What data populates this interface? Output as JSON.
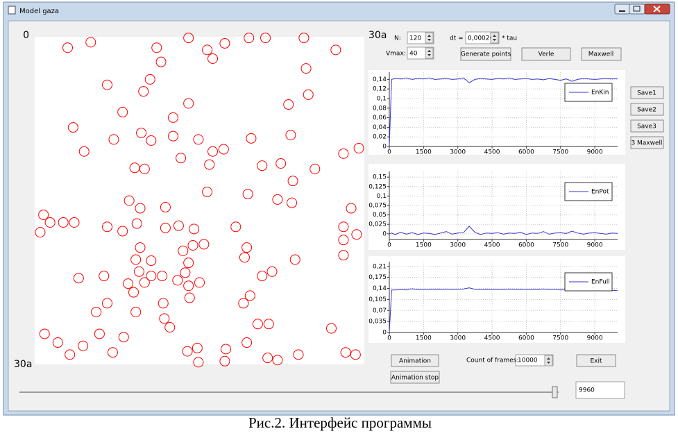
{
  "window": {
    "title": "Model gaza"
  },
  "field": {
    "xlim": [
      0,
      30
    ],
    "ylim": [
      0,
      30
    ],
    "xticks": [
      0,
      {
        "value": 30,
        "label": "30a"
      }
    ],
    "yticks": [
      {
        "value": 30,
        "label": "30a"
      }
    ],
    "color": "#ff0000",
    "particles": [
      [
        3.0,
        1.0
      ],
      [
        5.1,
        0.5
      ],
      [
        11.1,
        1.0
      ],
      [
        14.0,
        0.1
      ],
      [
        15.7,
        1.2
      ],
      [
        17.3,
        0.6
      ],
      [
        19.5,
        0.1
      ],
      [
        21.0,
        0.1
      ],
      [
        24.5,
        0.1
      ],
      [
        27.4,
        1.2
      ],
      [
        16.2,
        2.0
      ],
      [
        11.5,
        2.3
      ],
      [
        24.7,
        2.9
      ],
      [
        10.5,
        3.9
      ],
      [
        6.6,
        4.4
      ],
      [
        9.9,
        5.0
      ],
      [
        24.9,
        5.3
      ],
      [
        14.0,
        6.1
      ],
      [
        23.1,
        6.2
      ],
      [
        8.0,
        6.9
      ],
      [
        12.6,
        7.4
      ],
      [
        3.5,
        8.3
      ],
      [
        9.7,
        8.8
      ],
      [
        12.6,
        9.1
      ],
      [
        7.2,
        9.4
      ],
      [
        10.6,
        9.5
      ],
      [
        14.9,
        9.4
      ],
      [
        19.7,
        9.3
      ],
      [
        23.3,
        9.0
      ],
      [
        4.5,
        10.5
      ],
      [
        16.2,
        10.5
      ],
      [
        17.2,
        10.3
      ],
      [
        13.3,
        11.1
      ],
      [
        28.1,
        10.7
      ],
      [
        29.5,
        10.2
      ],
      [
        9.1,
        12.0
      ],
      [
        10.0,
        12.1
      ],
      [
        15.9,
        11.7
      ],
      [
        20.7,
        11.8
      ],
      [
        22.4,
        11.6
      ],
      [
        25.5,
        12.1
      ],
      [
        23.5,
        13.2
      ],
      [
        15.7,
        14.2
      ],
      [
        19.4,
        14.4
      ],
      [
        22.1,
        14.9
      ],
      [
        8.6,
        15.0
      ],
      [
        23.4,
        15.2
      ],
      [
        9.6,
        15.7
      ],
      [
        11.9,
        15.6
      ],
      [
        28.8,
        15.7
      ],
      [
        0.8,
        16.3
      ],
      [
        1.4,
        17.0
      ],
      [
        2.6,
        17.0
      ],
      [
        3.6,
        17.0
      ],
      [
        0.5,
        17.9
      ],
      [
        6.6,
        17.4
      ],
      [
        8.0,
        17.8
      ],
      [
        9.3,
        17.1
      ],
      [
        11.9,
        17.5
      ],
      [
        13.1,
        17.3
      ],
      [
        14.5,
        17.6
      ],
      [
        18.3,
        17.4
      ],
      [
        28.1,
        17.4
      ],
      [
        29.3,
        18.1
      ],
      [
        28.1,
        18.6
      ],
      [
        9.6,
        19.3
      ],
      [
        13.5,
        19.6
      ],
      [
        14.4,
        19.1
      ],
      [
        15.4,
        19.0
      ],
      [
        19.3,
        19.3
      ],
      [
        9.2,
        20.4
      ],
      [
        10.6,
        20.5
      ],
      [
        14.0,
        20.7
      ],
      [
        19.1,
        20.2
      ],
      [
        23.7,
        20.4
      ],
      [
        28.1,
        20.0
      ],
      [
        13.7,
        21.6
      ],
      [
        9.5,
        21.5
      ],
      [
        6.3,
        21.9
      ],
      [
        4.0,
        22.1
      ],
      [
        11.6,
        21.9
      ],
      [
        10.6,
        21.9
      ],
      [
        21.6,
        21.5
      ],
      [
        20.7,
        21.9
      ],
      [
        13.0,
        22.3
      ],
      [
        15.0,
        22.5
      ],
      [
        8.5,
        22.6
      ],
      [
        10.0,
        22.5
      ],
      [
        14.0,
        22.8
      ],
      [
        9.0,
        23.4
      ],
      [
        19.6,
        23.7
      ],
      [
        14.1,
        23.9
      ],
      [
        11.7,
        24.4
      ],
      [
        6.6,
        24.4
      ],
      [
        19.0,
        24.4
      ],
      [
        5.6,
        25.2
      ],
      [
        9.2,
        25.2
      ],
      [
        11.8,
        25.8
      ],
      [
        12.3,
        26.6
      ],
      [
        0.9,
        27.2
      ],
      [
        5.9,
        27.2
      ],
      [
        20.3,
        26.3
      ],
      [
        21.3,
        26.3
      ],
      [
        27.0,
        26.7
      ],
      [
        2.1,
        28.0
      ],
      [
        4.4,
        28.3
      ],
      [
        8.1,
        27.5
      ],
      [
        19.3,
        28.0
      ],
      [
        3.2,
        29.1
      ],
      [
        7.1,
        28.9
      ],
      [
        13.9,
        28.8
      ],
      [
        14.8,
        28.5
      ],
      [
        17.4,
        28.6
      ],
      [
        24.0,
        29.1
      ],
      [
        28.3,
        28.9
      ],
      [
        29.2,
        29.1
      ],
      [
        21.2,
        29.4
      ],
      [
        22.1,
        29.6
      ],
      [
        14.9,
        29.8
      ],
      [
        17.3,
        29.7
      ]
    ]
  },
  "controls": {
    "n_label": "N:",
    "n_value": "120",
    "vmax_label": "Vmax:",
    "vmax_value": "40",
    "dt_label": "dt =",
    "dt_value": "0,00020",
    "dt_unit": "* tau",
    "buttons_top": [
      "Generate points",
      "Verle",
      "Maxwell"
    ],
    "buttons_side": [
      "Save1",
      "Save2",
      "Save3",
      "3 Maxwell"
    ],
    "animation": "Animation",
    "animation_stop": "Animation stop",
    "frames_label": "Count of frames:",
    "frames_value": "10000",
    "exit": "Exit",
    "slider_value": "9960"
  },
  "charts": [
    {
      "type": "line",
      "grid": true,
      "legend": "upper right",
      "x": [
        0,
        100,
        250,
        500,
        750,
        1000,
        1250,
        1500,
        1750,
        2000,
        2250,
        2500,
        2750,
        3000,
        3250,
        3500,
        3750,
        4000,
        4250,
        4500,
        4750,
        5000,
        5250,
        5500,
        5750,
        6000,
        6250,
        6500,
        6750,
        7000,
        7250,
        7500,
        7750,
        8000,
        8250,
        8500,
        8750,
        9000,
        9250,
        9500,
        9750,
        10000
      ],
      "series": [
        {
          "name": "EnKin",
          "color": "#3535d0",
          "values": [
            0,
            0.14,
            0.142,
            0.141,
            0.143,
            0.14,
            0.142,
            0.141,
            0.143,
            0.14,
            0.141,
            0.142,
            0.14,
            0.141,
            0.143,
            0.133,
            0.14,
            0.142,
            0.141,
            0.14,
            0.142,
            0.141,
            0.143,
            0.14,
            0.141,
            0.142,
            0.14,
            0.141,
            0.139,
            0.142,
            0.14,
            0.138,
            0.141,
            0.136,
            0.14,
            0.142,
            0.141,
            0.14,
            0.141,
            0.142,
            0.141,
            0.142
          ]
        }
      ],
      "xlim": [
        0,
        10000
      ],
      "ylim": [
        0,
        0.155
      ],
      "xticks": [
        0,
        1500,
        3000,
        4500,
        6000,
        7500,
        9000
      ],
      "yticks": [
        0,
        {
          "value": 0.02,
          "label": "0,02"
        },
        {
          "value": 0.04,
          "label": "0,04"
        },
        {
          "value": 0.06,
          "label": "0,06"
        },
        {
          "value": 0.08,
          "label": "0,08"
        },
        {
          "value": 0.1,
          "label": "0,1"
        },
        {
          "value": 0.12,
          "label": "0,12"
        },
        {
          "value": 0.14,
          "label": "0,14"
        }
      ]
    },
    {
      "type": "line",
      "grid": true,
      "legend": "upper right",
      "x": [
        0,
        100,
        250,
        500,
        750,
        1000,
        1250,
        1500,
        1750,
        2000,
        2250,
        2500,
        2750,
        3000,
        3250,
        3500,
        3750,
        4000,
        4250,
        4500,
        4750,
        5000,
        5250,
        5500,
        5750,
        6000,
        6250,
        6500,
        6750,
        7000,
        7250,
        7500,
        7750,
        8000,
        8250,
        8500,
        8750,
        9000,
        9250,
        9500,
        9750,
        10000
      ],
      "series": [
        {
          "name": "EnPot",
          "color": "#3535d0",
          "values": [
            0,
            0.002,
            -0.002,
            0.004,
            -0.001,
            0.003,
            -0.002,
            0.002,
            0.001,
            -0.002,
            0.002,
            0.006,
            -0.001,
            0.002,
            0.003,
            0.02,
            0.004,
            -0.002,
            0.002,
            0.001,
            0.003,
            -0.001,
            0.002,
            0.001,
            0.004,
            -0.002,
            0.002,
            0.001,
            0.006,
            -0.001,
            0.002,
            0.003,
            0.001,
            0.007,
            0.002,
            -0.001,
            0.002,
            0.003,
            0.001,
            -0.001,
            0.002,
            0.001
          ]
        }
      ],
      "xlim": [
        0,
        10000
      ],
      "ylim": [
        -0.015,
        0.165
      ],
      "xticks": [
        0,
        1500,
        3000,
        4500,
        6000,
        7500,
        9000
      ],
      "yticks": [
        0,
        {
          "value": 0.025,
          "label": "0,025"
        },
        {
          "value": 0.05,
          "label": "0,05"
        },
        {
          "value": 0.075,
          "label": "0,075"
        },
        {
          "value": 0.1,
          "label": "0,1"
        },
        {
          "value": 0.125,
          "label": "0,125"
        },
        {
          "value": 0.15,
          "label": "0,15"
        }
      ]
    },
    {
      "type": "line",
      "grid": true,
      "legend": "upper right",
      "x": [
        0,
        100,
        250,
        500,
        750,
        1000,
        1250,
        1500,
        1750,
        2000,
        2250,
        2500,
        2750,
        3000,
        3250,
        3500,
        3750,
        4000,
        4250,
        4500,
        4750,
        5000,
        5250,
        5500,
        5750,
        6000,
        6250,
        6500,
        6750,
        7000,
        7250,
        7500,
        7750,
        8000,
        8250,
        8500,
        8750,
        9000,
        9250,
        9500,
        9750,
        10000
      ],
      "series": [
        {
          "name": "EnFull",
          "color": "#3535d0",
          "values": [
            0,
            0.135,
            0.135,
            0.136,
            0.135,
            0.139,
            0.136,
            0.137,
            0.136,
            0.137,
            0.136,
            0.138,
            0.136,
            0.137,
            0.138,
            0.142,
            0.137,
            0.136,
            0.137,
            0.136,
            0.137,
            0.136,
            0.138,
            0.136,
            0.137,
            0.136,
            0.137,
            0.136,
            0.138,
            0.136,
            0.137,
            0.135,
            0.136,
            0.14,
            0.137,
            0.136,
            0.137,
            0.136,
            0.135,
            0.136,
            0.134,
            0.133
          ]
        }
      ],
      "xlim": [
        0,
        10000
      ],
      "ylim": [
        0,
        0.225
      ],
      "xticks": [
        0,
        1500,
        3000,
        4500,
        6000,
        7500,
        9000
      ],
      "yticks": [
        0,
        {
          "value": 0.035,
          "label": "0,035"
        },
        {
          "value": 0.07,
          "label": "0,07"
        },
        {
          "value": 0.105,
          "label": "0,105"
        },
        {
          "value": 0.14,
          "label": "0,14"
        },
        {
          "value": 0.175,
          "label": "0,175"
        },
        {
          "value": 0.21,
          "label": "0,21"
        }
      ]
    }
  ],
  "caption": "Рис.2. Интерфейс программы"
}
